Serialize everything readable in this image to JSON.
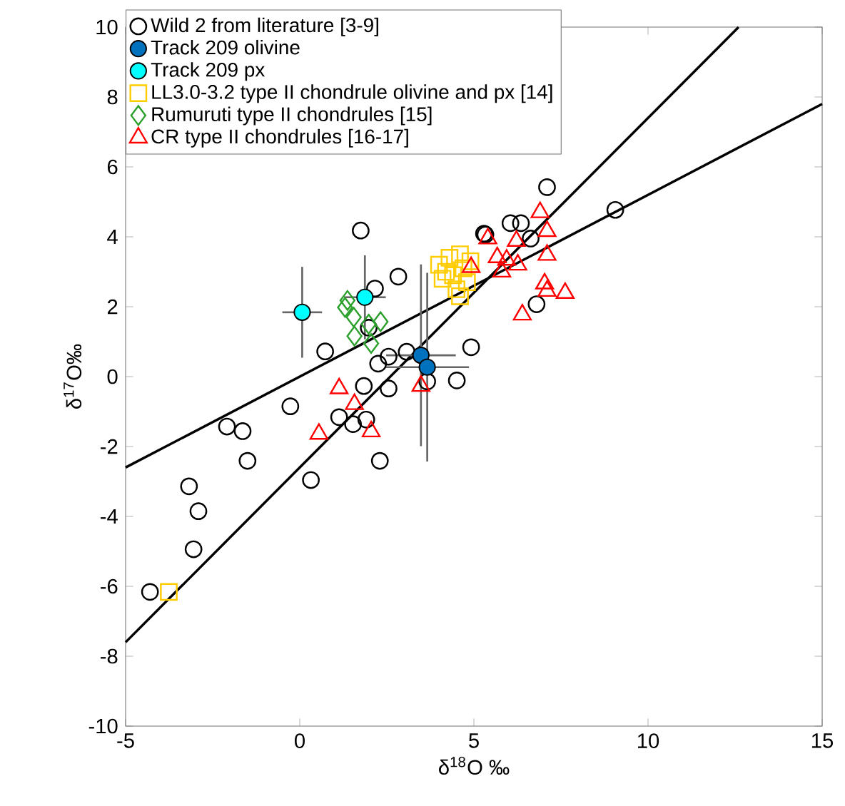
{
  "chart_data": {
    "type": "scatter",
    "xlabel": "δ$^{18}$O ‰",
    "ylabel": "δ$^{17}$O‰",
    "xlim": [
      -5,
      15
    ],
    "ylim": [
      -10,
      10
    ],
    "xticks": [
      -5,
      0,
      5,
      10,
      15
    ],
    "yticks": [
      -10,
      -8,
      -6,
      -4,
      -2,
      0,
      2,
      4,
      6,
      8,
      10
    ],
    "grid": false,
    "legend": "top left",
    "series": [
      {
        "name": "Wild 2 from literature [3-9]",
        "color": "#000000",
        "marker": "circle",
        "x": [
          1.75,
          2.83,
          2.16,
          0.73,
          1.98,
          2.55,
          2.25,
          3.07,
          4.92,
          1.84,
          2.55,
          3.66,
          4.51,
          -0.27,
          -2.09,
          -1.64,
          1.13,
          1.53,
          1.91,
          -1.5,
          2.3,
          0.32,
          -3.18,
          -2.91,
          -3.05,
          -4.3,
          5.29,
          7.1,
          9.06,
          5.33,
          6.05,
          6.35,
          6.63,
          6.8
        ],
        "values": [
          4.18,
          2.86,
          2.52,
          0.72,
          1.4,
          0.57,
          0.37,
          0.71,
          0.84,
          -0.27,
          -0.34,
          -0.14,
          -0.11,
          -0.85,
          -1.43,
          -1.56,
          -1.16,
          -1.36,
          -1.23,
          -2.41,
          -2.41,
          -2.96,
          -3.14,
          -3.85,
          -4.94,
          -6.16,
          4.09,
          5.42,
          4.77,
          4.06,
          4.39,
          4.39,
          3.95,
          2.07
        ]
      },
      {
        "name": "Track 209 olivine",
        "color": "#0072bd",
        "marker": "circle",
        "x": [
          3.48,
          3.66
        ],
        "values": [
          0.61,
          0.27
        ],
        "errors": [
          2.6,
          2.7
        ],
        "xerrors": [
          1.0,
          1.2
        ]
      },
      {
        "name": "Track 209 px",
        "color": "#00ffff",
        "marker": "circle",
        "x": [
          0.07,
          1.87
        ],
        "values": [
          1.84,
          2.27
        ],
        "errors": [
          1.3,
          1.2
        ],
        "xerrors": [
          0.57,
          0.6
        ]
      },
      {
        "name": "LL3.0-3.2 type II chondrule olivine and px [14]",
        "color": "#ffcc00",
        "marker": "square",
        "x": [
          -3.76,
          4.0,
          4.3,
          4.6,
          4.1,
          4.4,
          4.7,
          4.5,
          4.8,
          4.2,
          4.9,
          4.6
        ],
        "values": [
          -6.16,
          3.2,
          3.4,
          3.5,
          2.8,
          2.9,
          3.1,
          2.5,
          2.7,
          3.0,
          3.3,
          2.3
        ]
      },
      {
        "name": "Rumuruti type II chondrules [15]",
        "color": "#2ca02c",
        "marker": "diamond",
        "x": [
          1.37,
          1.55,
          1.98,
          2.32,
          1.57,
          2.05,
          1.3
        ],
        "values": [
          2.18,
          1.7,
          1.5,
          1.57,
          1.16,
          0.95,
          1.98
        ]
      },
      {
        "name": "CR type II chondrules [16-17]",
        "color": "#ff0000",
        "marker": "triangle",
        "x": [
          1.13,
          1.57,
          0.55,
          2.05,
          3.48,
          4.92,
          6.9,
          7.1,
          5.4,
          6.22,
          5.67,
          5.94,
          6.26,
          7.1,
          5.8,
          7.03,
          7.1,
          7.62,
          6.39
        ],
        "values": [
          -0.34,
          -0.79,
          -1.64,
          -1.57,
          -0.27,
          3.13,
          4.7,
          4.16,
          3.95,
          3.88,
          3.41,
          3.34,
          3.2,
          3.48,
          3.0,
          2.66,
          2.45,
          2.39,
          1.77
        ]
      },
      {
        "type": "line",
        "color": "#000000",
        "marker": "none",
        "line_style": "solid",
        "x": [
          -5,
          15
        ],
        "values": [
          -2.6,
          7.8
        ]
      },
      {
        "type": "line",
        "color": "#000000",
        "marker": "none",
        "line_style": "solid",
        "x": [
          -5,
          12.6
        ],
        "values": [
          -7.6,
          10
        ]
      }
    ]
  }
}
